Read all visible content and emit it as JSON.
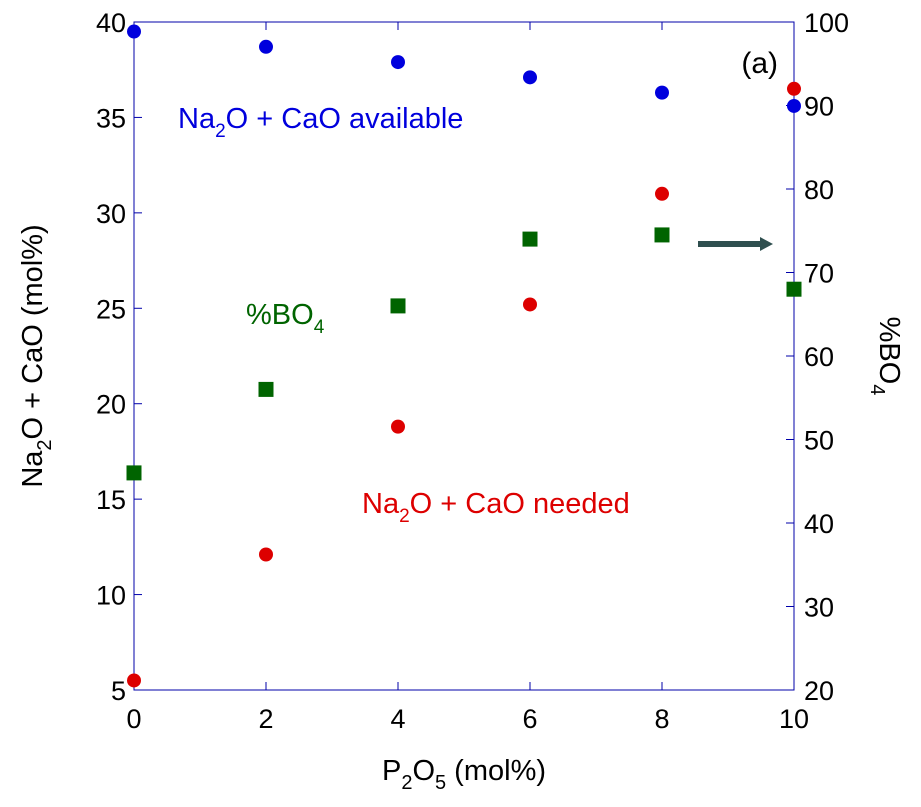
{
  "chart_data": {
    "type": "scatter",
    "panel_label": "(a)",
    "x_axis": {
      "label_parts": [
        "P",
        "2",
        "O",
        "5",
        " (mol%)"
      ],
      "range": [
        0,
        10
      ],
      "ticks": [
        "0",
        "2",
        "4",
        "6",
        "8",
        "10"
      ]
    },
    "y_left": {
      "label_parts": [
        "Na",
        "2",
        "O + CaO (mol%)"
      ],
      "range": [
        5,
        40
      ],
      "ticks": [
        "5",
        "10",
        "15",
        "20",
        "25",
        "30",
        "35",
        "40"
      ]
    },
    "y_right": {
      "label_parts": [
        "%BO",
        "4"
      ],
      "range": [
        20,
        100
      ],
      "ticks": [
        "20",
        "30",
        "40",
        "50",
        "60",
        "70",
        "80",
        "90",
        "100"
      ]
    },
    "series": [
      {
        "name": "Na2O + CaO available",
        "axis": "left",
        "marker": "circle",
        "color": "#0000dd",
        "x": [
          0,
          2,
          4,
          6,
          8,
          10
        ],
        "y": [
          39.5,
          38.7,
          37.9,
          37.1,
          36.3,
          35.6
        ]
      },
      {
        "name": "Na2O + CaO needed",
        "axis": "left",
        "marker": "circle",
        "color": "#dd0000",
        "x": [
          0,
          2,
          4,
          6,
          8,
          10
        ],
        "y": [
          5.5,
          12.1,
          18.8,
          25.2,
          31.0,
          36.5
        ]
      },
      {
        "name": "%BO4",
        "axis": "right",
        "marker": "square",
        "color": "#006400",
        "x": [
          0,
          2,
          4,
          6,
          8,
          10
        ],
        "y": [
          46,
          56,
          66,
          74,
          74.5,
          68
        ]
      }
    ],
    "annotations": {
      "available_parts": [
        "Na",
        "2",
        "O + CaO available"
      ],
      "needed_parts": [
        "Na",
        "2",
        "O + CaO needed"
      ],
      "bo4_parts": [
        "%BO",
        "4"
      ]
    },
    "arrow": {
      "direction": "right",
      "color": "#2f4f4f"
    },
    "frame_color": "#0000aa",
    "grid": false
  }
}
